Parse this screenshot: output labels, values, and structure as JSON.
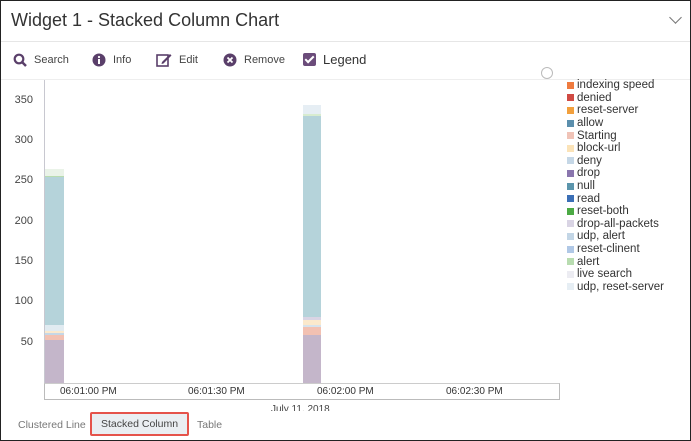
{
  "header": {
    "title": "Widget 1 - Stacked Column Chart",
    "collapse_icon": "chevron-down-icon"
  },
  "toolbar": [
    {
      "label": "Search",
      "icon": "search-icon"
    },
    {
      "label": "Info",
      "icon": "info-icon"
    },
    {
      "label": "Edit",
      "icon": "edit-icon"
    },
    {
      "label": "Remove",
      "icon": "remove-icon"
    },
    {
      "label": "Legend",
      "icon": "checkbox-checked-icon",
      "checked": true
    }
  ],
  "tabs": [
    {
      "label": "Clustered Line",
      "active": false
    },
    {
      "label": "Stacked Column",
      "active": true
    },
    {
      "label": "Table",
      "active": false
    }
  ],
  "colors": {
    "accent": "#6b4c7a",
    "active_tab_border": "#e5534b"
  },
  "chart_data": {
    "type": "bar",
    "stacked": true,
    "xlabel": "July 11, 2018",
    "x_ticks": [
      "06:01:00 PM",
      "06:01:30 PM",
      "06:02:00 PM",
      "06:02:30 PM"
    ],
    "y_ticks": [
      50,
      100,
      150,
      200,
      250,
      300,
      350
    ],
    "ylim": [
      0,
      370
    ],
    "legend_position": "right",
    "legend": [
      {
        "name": "indexing speed",
        "color": "#ef7b3f"
      },
      {
        "name": "denied",
        "color": "#d04a43"
      },
      {
        "name": "reset-server",
        "color": "#f2a03d"
      },
      {
        "name": "allow",
        "color": "#5b8fad"
      },
      {
        "name": "Starting",
        "color": "#f0c3b7"
      },
      {
        "name": "block-url",
        "color": "#fbe3b8"
      },
      {
        "name": "deny",
        "color": "#c5d7e6"
      },
      {
        "name": "drop",
        "color": "#8a76ae"
      },
      {
        "name": "null",
        "color": "#5b95ac"
      },
      {
        "name": "read",
        "color": "#3b6fb6"
      },
      {
        "name": "reset-both",
        "color": "#4caa44"
      },
      {
        "name": "drop-all-packets",
        "color": "#d9d4e4"
      },
      {
        "name": "udp, alert",
        "color": "#c3d6e6"
      },
      {
        "name": "reset-clinent",
        "color": "#b0c8e6"
      },
      {
        "name": "alert",
        "color": "#b8dcb0"
      },
      {
        "name": "live search",
        "color": "#ececf2"
      },
      {
        "name": "udp, reset-server",
        "color": "#e6eef4"
      }
    ],
    "bars": [
      {
        "x": "06:00:52 PM",
        "segments": [
          {
            "series": "drop",
            "value": 53,
            "color": "#c4b6ca"
          },
          {
            "series": "Starting",
            "value": 7,
            "color": "#f2c1b2"
          },
          {
            "series": "deny",
            "value": 2,
            "color": "#c5d7e6"
          },
          {
            "series": "block-url",
            "value": 3,
            "color": "#fbe9cc"
          },
          {
            "series": "udp, reset-server",
            "value": 7,
            "color": "#e1ebf1"
          },
          {
            "series": "null",
            "value": 183,
            "color": "#b5d3da"
          },
          {
            "series": "alert",
            "value": 2,
            "color": "#b8dcb0"
          },
          {
            "series": "live search",
            "value": 8,
            "color": "#eaf3e8"
          }
        ]
      },
      {
        "x": "06:01:52 PM",
        "segments": [
          {
            "series": "drop",
            "value": 59,
            "color": "#c4b6ca"
          },
          {
            "series": "Starting",
            "value": 10,
            "color": "#f2c1b2"
          },
          {
            "series": "deny",
            "value": 3,
            "color": "#d7e3ec"
          },
          {
            "series": "block-url",
            "value": 6,
            "color": "#fbe9cc"
          },
          {
            "series": "drop-all-packets",
            "value": 4,
            "color": "#d9d4e4"
          },
          {
            "series": "null",
            "value": 249,
            "color": "#b5d3da"
          },
          {
            "series": "alert",
            "value": 2,
            "color": "#d8ecd0"
          },
          {
            "series": "udp, reset-server",
            "value": 12,
            "color": "#e6eef4"
          }
        ]
      }
    ]
  }
}
